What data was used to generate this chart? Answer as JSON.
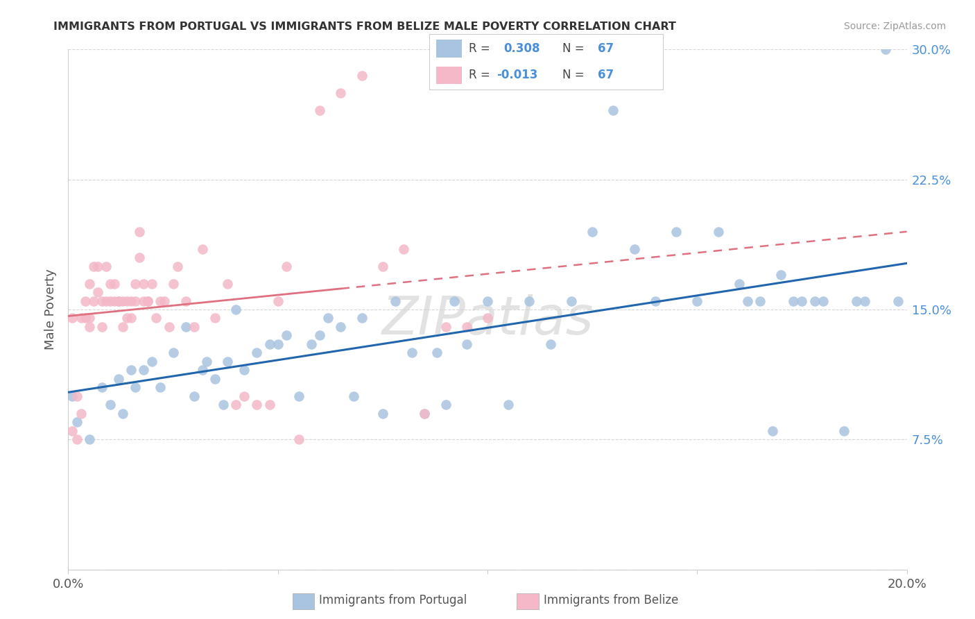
{
  "title": "IMMIGRANTS FROM PORTUGAL VS IMMIGRANTS FROM BELIZE MALE POVERTY CORRELATION CHART",
  "source": "Source: ZipAtlas.com",
  "ylabel": "Male Poverty",
  "xlim": [
    0.0,
    0.2
  ],
  "ylim": [
    0.0,
    0.3
  ],
  "portugal_color": "#a8c4e0",
  "belize_color": "#f4b8c8",
  "portugal_line_color": "#2166ac",
  "belize_line_color": "#e07080",
  "watermark": "ZIPatlas",
  "portugal_x": [
    0.001,
    0.002,
    0.005,
    0.008,
    0.01,
    0.012,
    0.013,
    0.015,
    0.016,
    0.018,
    0.02,
    0.022,
    0.025,
    0.028,
    0.03,
    0.032,
    0.033,
    0.035,
    0.037,
    0.038,
    0.04,
    0.042,
    0.045,
    0.048,
    0.05,
    0.052,
    0.055,
    0.058,
    0.06,
    0.062,
    0.065,
    0.068,
    0.07,
    0.075,
    0.078,
    0.082,
    0.085,
    0.088,
    0.09,
    0.092,
    0.095,
    0.1,
    0.105,
    0.11,
    0.115,
    0.12,
    0.125,
    0.13,
    0.135,
    0.14,
    0.145,
    0.15,
    0.155,
    0.16,
    0.162,
    0.165,
    0.168,
    0.17,
    0.173,
    0.175,
    0.178,
    0.18,
    0.185,
    0.188,
    0.19,
    0.195,
    0.198
  ],
  "portugal_y": [
    0.1,
    0.085,
    0.075,
    0.105,
    0.095,
    0.11,
    0.09,
    0.115,
    0.105,
    0.115,
    0.12,
    0.105,
    0.125,
    0.14,
    0.1,
    0.115,
    0.12,
    0.11,
    0.095,
    0.12,
    0.15,
    0.115,
    0.125,
    0.13,
    0.13,
    0.135,
    0.1,
    0.13,
    0.135,
    0.145,
    0.14,
    0.1,
    0.145,
    0.09,
    0.155,
    0.125,
    0.09,
    0.125,
    0.095,
    0.155,
    0.13,
    0.155,
    0.095,
    0.155,
    0.13,
    0.155,
    0.195,
    0.265,
    0.185,
    0.155,
    0.195,
    0.155,
    0.195,
    0.165,
    0.155,
    0.155,
    0.08,
    0.17,
    0.155,
    0.155,
    0.155,
    0.155,
    0.08,
    0.155,
    0.155,
    0.3,
    0.155
  ],
  "belize_x": [
    0.001,
    0.001,
    0.002,
    0.002,
    0.003,
    0.003,
    0.004,
    0.004,
    0.005,
    0.005,
    0.005,
    0.006,
    0.006,
    0.007,
    0.007,
    0.008,
    0.008,
    0.009,
    0.009,
    0.01,
    0.01,
    0.011,
    0.011,
    0.012,
    0.012,
    0.013,
    0.013,
    0.014,
    0.014,
    0.015,
    0.015,
    0.016,
    0.016,
    0.017,
    0.017,
    0.018,
    0.018,
    0.019,
    0.019,
    0.02,
    0.021,
    0.022,
    0.023,
    0.024,
    0.025,
    0.026,
    0.028,
    0.03,
    0.032,
    0.035,
    0.038,
    0.04,
    0.042,
    0.045,
    0.048,
    0.05,
    0.052,
    0.055,
    0.06,
    0.065,
    0.07,
    0.075,
    0.08,
    0.085,
    0.09,
    0.095,
    0.1
  ],
  "belize_y": [
    0.145,
    0.08,
    0.1,
    0.075,
    0.145,
    0.09,
    0.155,
    0.145,
    0.165,
    0.145,
    0.14,
    0.175,
    0.155,
    0.175,
    0.16,
    0.155,
    0.14,
    0.175,
    0.155,
    0.165,
    0.155,
    0.155,
    0.165,
    0.155,
    0.155,
    0.155,
    0.14,
    0.155,
    0.145,
    0.155,
    0.145,
    0.165,
    0.155,
    0.195,
    0.18,
    0.155,
    0.165,
    0.155,
    0.155,
    0.165,
    0.145,
    0.155,
    0.155,
    0.14,
    0.165,
    0.175,
    0.155,
    0.14,
    0.185,
    0.145,
    0.165,
    0.095,
    0.1,
    0.095,
    0.095,
    0.155,
    0.175,
    0.075,
    0.265,
    0.275,
    0.285,
    0.175,
    0.185,
    0.09,
    0.14,
    0.14,
    0.145
  ]
}
